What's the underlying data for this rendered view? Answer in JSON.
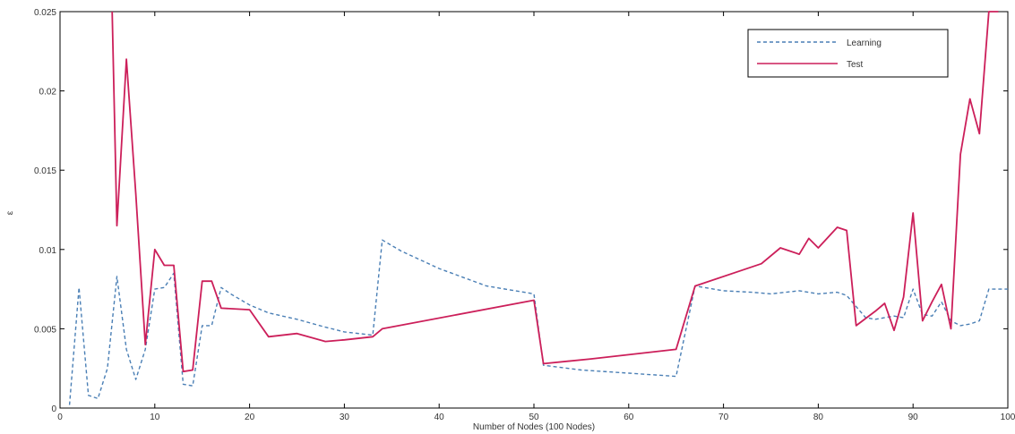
{
  "chart_data": {
    "type": "line",
    "title": "",
    "xlabel": "Number of Nodes (100 Nodes)",
    "ylabel": "ε",
    "xlim": [
      0,
      100
    ],
    "ylim": [
      0,
      0.025
    ],
    "x_ticks": [
      0,
      10,
      20,
      30,
      40,
      50,
      60,
      70,
      80,
      90,
      100
    ],
    "x_tick_labels": [
      "0",
      "10",
      "20",
      "30",
      "40",
      "50",
      "60",
      "70",
      "80",
      "90",
      "100"
    ],
    "y_ticks": [
      0,
      0.005,
      0.01,
      0.015,
      0.02,
      0.025
    ],
    "y_tick_labels": [
      "0",
      "0.005",
      "0.01",
      "0.015",
      "0.02",
      "0.025"
    ],
    "grid": false,
    "legend_position": "top-right",
    "colors": {
      "training": "#4a7fb5",
      "test": "#cc1f5a"
    },
    "series": [
      {
        "name": "Learning",
        "style": "dashed",
        "x": [
          1,
          2,
          3,
          4,
          5,
          6,
          7,
          8,
          9,
          10,
          11,
          12,
          13,
          14,
          15,
          16,
          17,
          18,
          20,
          22,
          25,
          28,
          30,
          33,
          34,
          36,
          40,
          45,
          50,
          51,
          55,
          60,
          65,
          67,
          70,
          73,
          75,
          78,
          80,
          82,
          83,
          85,
          86,
          88,
          89,
          90,
          91,
          92,
          93,
          94,
          95,
          96,
          97,
          98,
          100
        ],
        "y": [
          0.0002,
          0.0076,
          0.0008,
          0.0006,
          0.0025,
          0.0083,
          0.0037,
          0.0018,
          0.0037,
          0.0075,
          0.0076,
          0.0085,
          0.0015,
          0.0014,
          0.0052,
          0.0052,
          0.0076,
          0.0072,
          0.0065,
          0.006,
          0.0056,
          0.0051,
          0.0048,
          0.0046,
          0.0106,
          0.0099,
          0.0088,
          0.0077,
          0.0072,
          0.0027,
          0.0024,
          0.0022,
          0.002,
          0.0077,
          0.0074,
          0.0073,
          0.0072,
          0.0074,
          0.0072,
          0.0073,
          0.0071,
          0.0057,
          0.0056,
          0.0058,
          0.0057,
          0.0075,
          0.0059,
          0.0058,
          0.0067,
          0.0055,
          0.0052,
          0.0053,
          0.0055,
          0.0075,
          0.0075
        ]
      },
      {
        "name": "Test",
        "style": "solid",
        "x": [
          5.5,
          6,
          7,
          8,
          9,
          10,
          11,
          12,
          13,
          14,
          15,
          16,
          17,
          20,
          22,
          25,
          28,
          30,
          33,
          34,
          50,
          51,
          56,
          65,
          67,
          72,
          74,
          76,
          78,
          79,
          80,
          82,
          83,
          84,
          86,
          87,
          88,
          89,
          90,
          91,
          92,
          93,
          94,
          95,
          96,
          97,
          98,
          99
        ],
        "y": [
          0.025,
          0.0115,
          0.022,
          0.0135,
          0.004,
          0.01,
          0.009,
          0.009,
          0.0023,
          0.0024,
          0.008,
          0.008,
          0.0063,
          0.0062,
          0.0045,
          0.0047,
          0.0042,
          0.0043,
          0.0045,
          0.005,
          0.0068,
          0.0028,
          0.0031,
          0.0037,
          0.0077,
          0.0087,
          0.0091,
          0.0101,
          0.0097,
          0.0107,
          0.0101,
          0.0114,
          0.0112,
          0.0052,
          0.0061,
          0.0066,
          0.0049,
          0.007,
          0.0123,
          0.0055,
          0.0067,
          0.0078,
          0.005,
          0.016,
          0.0195,
          0.0173,
          0.025,
          0.025
        ]
      }
    ]
  }
}
